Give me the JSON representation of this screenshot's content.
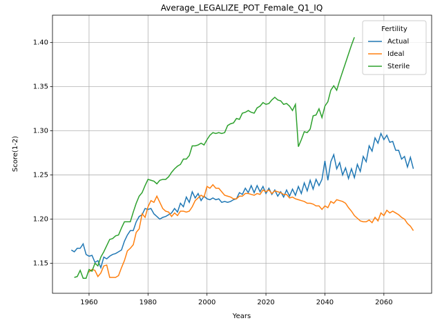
{
  "chart_data": {
    "type": "line",
    "title": "Average_LEGALIZE_POT_Female_Q1_IQ",
    "x_label": "Years",
    "y_label": "Score(1-2)",
    "legend_title": "Fertility",
    "legend_loc": "upper right",
    "grid": true,
    "xlim": [
      1947.6,
      2076.2
    ],
    "xticks": [
      1960,
      1980,
      2000,
      2020,
      2040,
      2060
    ],
    "ylim": [
      1.116,
      1.431
    ],
    "yticks": [
      1.15,
      {
        "value": 1.2,
        "label": "1.20"
      },
      1.25,
      {
        "value": 1.3,
        "label": "1.30"
      },
      1.35,
      {
        "value": 1.4,
        "label": "1.40"
      }
    ],
    "x": [
      1954,
      1955,
      1956,
      1957,
      1958,
      1959,
      1960,
      1961,
      1962,
      1963,
      1964,
      1965,
      1966,
      1967,
      1968,
      1969,
      1970,
      1971,
      1972,
      1973,
      1974,
      1975,
      1976,
      1977,
      1978,
      1979,
      1980,
      1981,
      1982,
      1983,
      1984,
      1985,
      1986,
      1987,
      1988,
      1989,
      1990,
      1991,
      1992,
      1993,
      1994,
      1995,
      1996,
      1997,
      1998,
      1999,
      2000,
      2001,
      2002,
      2003,
      2004,
      2005,
      2006,
      2007,
      2008,
      2009,
      2010,
      2011,
      2012,
      2013,
      2014,
      2015,
      2016,
      2017,
      2018,
      2019,
      2020,
      2021,
      2022,
      2023,
      2024,
      2025,
      2026,
      2027,
      2028,
      2029,
      2030,
      2031,
      2032,
      2033,
      2034,
      2035,
      2036,
      2037,
      2038,
      2039,
      2040,
      2041,
      2042,
      2043,
      2044,
      2045,
      2046,
      2047,
      2048,
      2049,
      2050,
      2051,
      2052,
      2053,
      2054,
      2055,
      2056,
      2057,
      2058,
      2059,
      2060,
      2061,
      2062,
      2063,
      2064,
      2065,
      2066,
      2067,
      2068,
      2069,
      2070
    ],
    "series": [
      {
        "name": "Actual",
        "color": "#1f77b4",
        "values": [
          1.165,
          1.163,
          1.167,
          1.167,
          1.172,
          1.16,
          1.158,
          1.159,
          1.151,
          1.153,
          1.145,
          1.157,
          1.155,
          1.158,
          1.16,
          1.161,
          1.163,
          1.165,
          1.175,
          1.182,
          1.187,
          1.187,
          1.197,
          1.203,
          1.205,
          1.212,
          1.211,
          1.212,
          1.206,
          1.203,
          1.2,
          1.202,
          1.203,
          1.205,
          1.207,
          1.212,
          1.208,
          1.218,
          1.214,
          1.225,
          1.219,
          1.231,
          1.224,
          1.229,
          1.221,
          1.226,
          1.223,
          1.222,
          1.224,
          1.222,
          1.223,
          1.219,
          1.22,
          1.219,
          1.22,
          1.222,
          1.223,
          1.23,
          1.228,
          1.235,
          1.23,
          1.238,
          1.23,
          1.238,
          1.231,
          1.237,
          1.229,
          1.235,
          1.228,
          1.233,
          1.226,
          1.231,
          1.225,
          1.233,
          1.226,
          1.234,
          1.227,
          1.237,
          1.229,
          1.241,
          1.232,
          1.244,
          1.234,
          1.245,
          1.238,
          1.245,
          1.266,
          1.244,
          1.265,
          1.273,
          1.257,
          1.264,
          1.25,
          1.258,
          1.246,
          1.257,
          1.247,
          1.262,
          1.254,
          1.271,
          1.265,
          1.283,
          1.277,
          1.292,
          1.286,
          1.297,
          1.29,
          1.295,
          1.287,
          1.288,
          1.278,
          1.278,
          1.268,
          1.271,
          1.259,
          1.27,
          1.257
        ]
      },
      {
        "name": "Ideal",
        "color": "#ff7f0e",
        "values": [
          null,
          null,
          null,
          null,
          null,
          null,
          1.14,
          1.143,
          1.142,
          1.135,
          1.139,
          1.147,
          1.148,
          1.134,
          1.134,
          1.134,
          1.136,
          1.145,
          1.153,
          1.164,
          1.167,
          1.171,
          1.185,
          1.189,
          1.206,
          1.202,
          1.214,
          1.221,
          1.219,
          1.226,
          1.219,
          1.212,
          1.209,
          1.208,
          1.203,
          1.207,
          1.204,
          1.209,
          1.209,
          1.208,
          1.209,
          1.214,
          1.221,
          1.224,
          1.227,
          1.225,
          1.237,
          1.235,
          1.239,
          1.235,
          1.235,
          1.231,
          1.227,
          1.226,
          1.225,
          1.223,
          1.223,
          1.226,
          1.226,
          1.229,
          1.229,
          1.228,
          1.227,
          1.229,
          1.228,
          1.233,
          1.231,
          1.233,
          1.229,
          1.232,
          1.231,
          1.23,
          1.228,
          1.228,
          1.224,
          1.225,
          1.223,
          1.222,
          1.221,
          1.22,
          1.218,
          1.218,
          1.217,
          1.215,
          1.215,
          1.211,
          1.215,
          1.213,
          1.22,
          1.218,
          1.222,
          1.221,
          1.22,
          1.218,
          1.213,
          1.209,
          1.204,
          1.201,
          1.198,
          1.197,
          1.197,
          1.199,
          1.196,
          1.202,
          1.198,
          1.207,
          1.204,
          1.21,
          1.207,
          1.209,
          1.207,
          1.205,
          1.202,
          1.2,
          1.195,
          1.192,
          1.187
        ]
      },
      {
        "name": "Sterile",
        "color": "#2ca02c",
        "values": [
          null,
          1.134,
          1.135,
          1.142,
          1.133,
          1.133,
          1.143,
          1.141,
          1.15,
          1.147,
          1.157,
          1.163,
          1.17,
          1.177,
          1.178,
          1.181,
          1.182,
          1.19,
          1.197,
          1.197,
          1.197,
          1.208,
          1.218,
          1.226,
          1.23,
          1.238,
          1.245,
          1.244,
          1.243,
          1.24,
          1.244,
          1.245,
          1.245,
          1.248,
          1.253,
          1.257,
          1.26,
          1.262,
          1.268,
          1.268,
          1.272,
          1.283,
          1.283,
          1.284,
          1.286,
          1.284,
          1.29,
          1.295,
          1.298,
          1.297,
          1.298,
          1.297,
          1.298,
          1.306,
          1.308,
          1.309,
          1.314,
          1.313,
          1.32,
          1.321,
          1.323,
          1.321,
          1.32,
          1.326,
          1.328,
          1.332,
          1.33,
          1.331,
          1.335,
          1.338,
          1.335,
          1.334,
          1.33,
          1.331,
          1.328,
          1.323,
          1.33,
          1.282,
          1.29,
          1.299,
          1.298,
          1.302,
          1.317,
          1.318,
          1.325,
          1.315,
          1.328,
          1.333,
          1.346,
          1.351,
          1.346,
          1.357,
          1.367,
          1.377,
          1.387,
          1.397,
          1.406,
          null,
          null,
          null,
          null,
          null,
          null,
          null,
          null,
          null,
          null,
          null,
          null,
          null,
          null,
          null,
          null,
          null,
          null,
          null,
          null
        ]
      }
    ]
  }
}
